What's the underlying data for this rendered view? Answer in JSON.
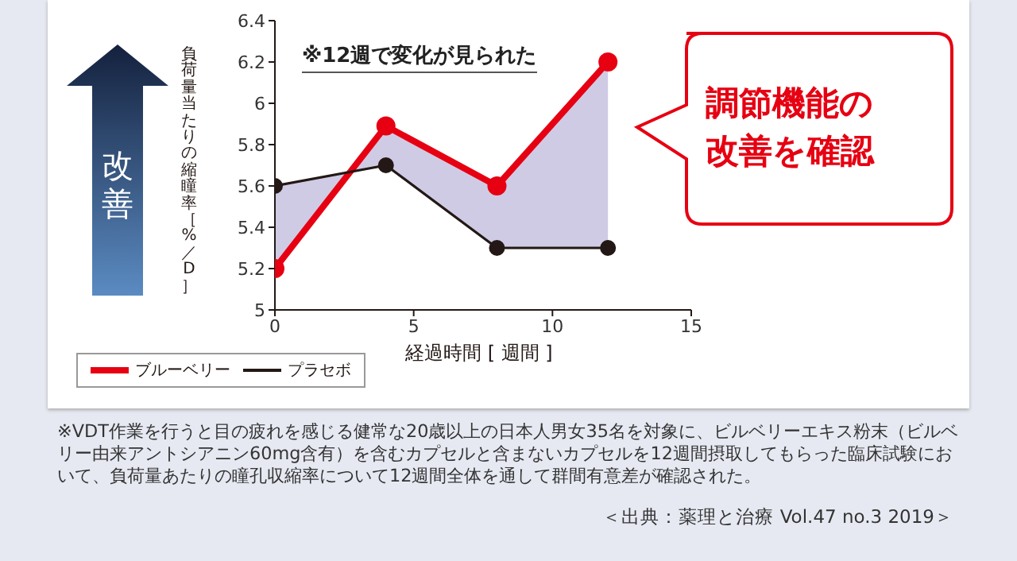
{
  "chart_data": {
    "type": "line",
    "xlabel": "経過時間 [ 週間 ]",
    "ylabel": "負荷量当たりの縮瞳率［%／D］",
    "x": [
      0,
      4,
      8,
      12
    ],
    "series": [
      {
        "name": "ブルーベリー",
        "color": "#e60012",
        "values": [
          5.2,
          5.89,
          5.6,
          6.2
        ],
        "lower": [
          5.6,
          5.7,
          5.3,
          5.3
        ],
        "upper": [
          5.2,
          5.89,
          5.6,
          6.2
        ]
      },
      {
        "name": "プラセボ",
        "color": "#231815",
        "values": [
          5.6,
          5.7,
          5.3,
          5.3
        ]
      }
    ],
    "xlim": [
      0,
      15
    ],
    "xticks": [
      0,
      5,
      10,
      15
    ],
    "ylim": [
      5,
      6.4
    ],
    "yticks": [
      5,
      5.2,
      5.4,
      5.6,
      5.8,
      6,
      6.2,
      6.4
    ],
    "grid": false,
    "legend": "bottom left",
    "marker": "circle",
    "line_style": "solid",
    "annotations": [
      "※12週で変化が見られた",
      "調節機能の改善を確認",
      "改善",
      "※VDT作業を行うと目の疲れを感じる健常な20歳以上の日本人男女35名を対象に、ビルベリーエキス粉末（ビルベリー由来アントシアニン60mg含有）を含むカプセルと含まないカプセルを12週間摂取してもらった臨床試験において、負荷量あたりの瞳孔収縮率について12週間全体を通して群間有意差が確認された。",
      "＜出典：薬理と治療 Vol.47 no.3 2019＞"
    ]
  }
}
